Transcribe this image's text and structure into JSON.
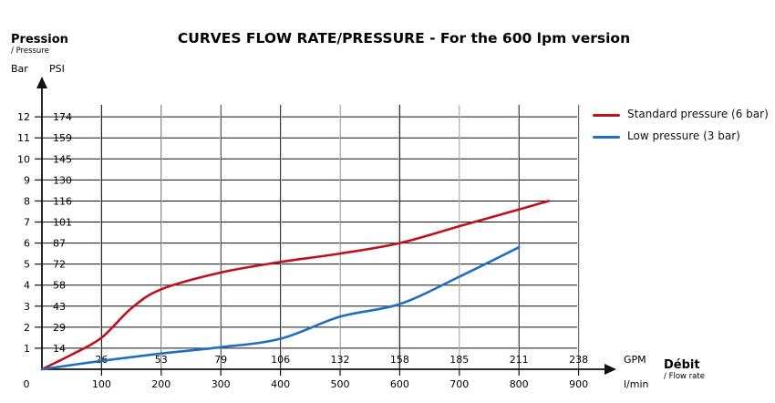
{
  "chart_data": {
    "type": "line",
    "title": "CURVES FLOW RATE/PRESSURE - For the 600 lpm version",
    "y_axis": {
      "title": "Pression",
      "subtitle": "/ Pressure",
      "unit_bar": "Bar",
      "unit_psi": "PSI",
      "ticks_bar": [
        "1",
        "2",
        "3",
        "4",
        "5",
        "6",
        "7",
        "8",
        "9",
        "10",
        "11",
        "12"
      ],
      "ticks_psi": [
        "14",
        "29",
        "43",
        "58",
        "72",
        "87",
        "101",
        "116",
        "130",
        "145",
        "159",
        "174"
      ],
      "range": [
        0,
        12.6
      ]
    },
    "x_axis": {
      "title": "Débit",
      "subtitle": "/ Flow rate",
      "unit_lpm": "l/min",
      "unit_gpm": "GPM",
      "ticks_lpm": [
        "0",
        "100",
        "200",
        "300",
        "400",
        "500",
        "600",
        "700",
        "800",
        "900"
      ],
      "ticks_gpm": [
        "26",
        "53",
        "79",
        "106",
        "132",
        "158",
        "185",
        "211",
        "238"
      ],
      "range": [
        0,
        950
      ]
    },
    "series": [
      {
        "name": "Standard pressure (6 bar)",
        "color": "#c0101e",
        "x": [
          0,
          50,
          100,
          150,
          200,
          300,
          400,
          500,
          600,
          700,
          800,
          850
        ],
        "y": [
          0,
          0.7,
          1.5,
          2.9,
          3.8,
          4.6,
          5.1,
          5.5,
          6.0,
          6.8,
          7.6,
          8.0
        ]
      },
      {
        "name": "Low pressure (3 bar)",
        "color": "#1f6fc0",
        "x": [
          0,
          100,
          200,
          300,
          400,
          500,
          600,
          700,
          800
        ],
        "y": [
          0,
          0.4,
          0.75,
          1.05,
          1.45,
          2.5,
          3.1,
          4.4,
          5.8
        ]
      }
    ],
    "legend": "right",
    "grid": true
  }
}
